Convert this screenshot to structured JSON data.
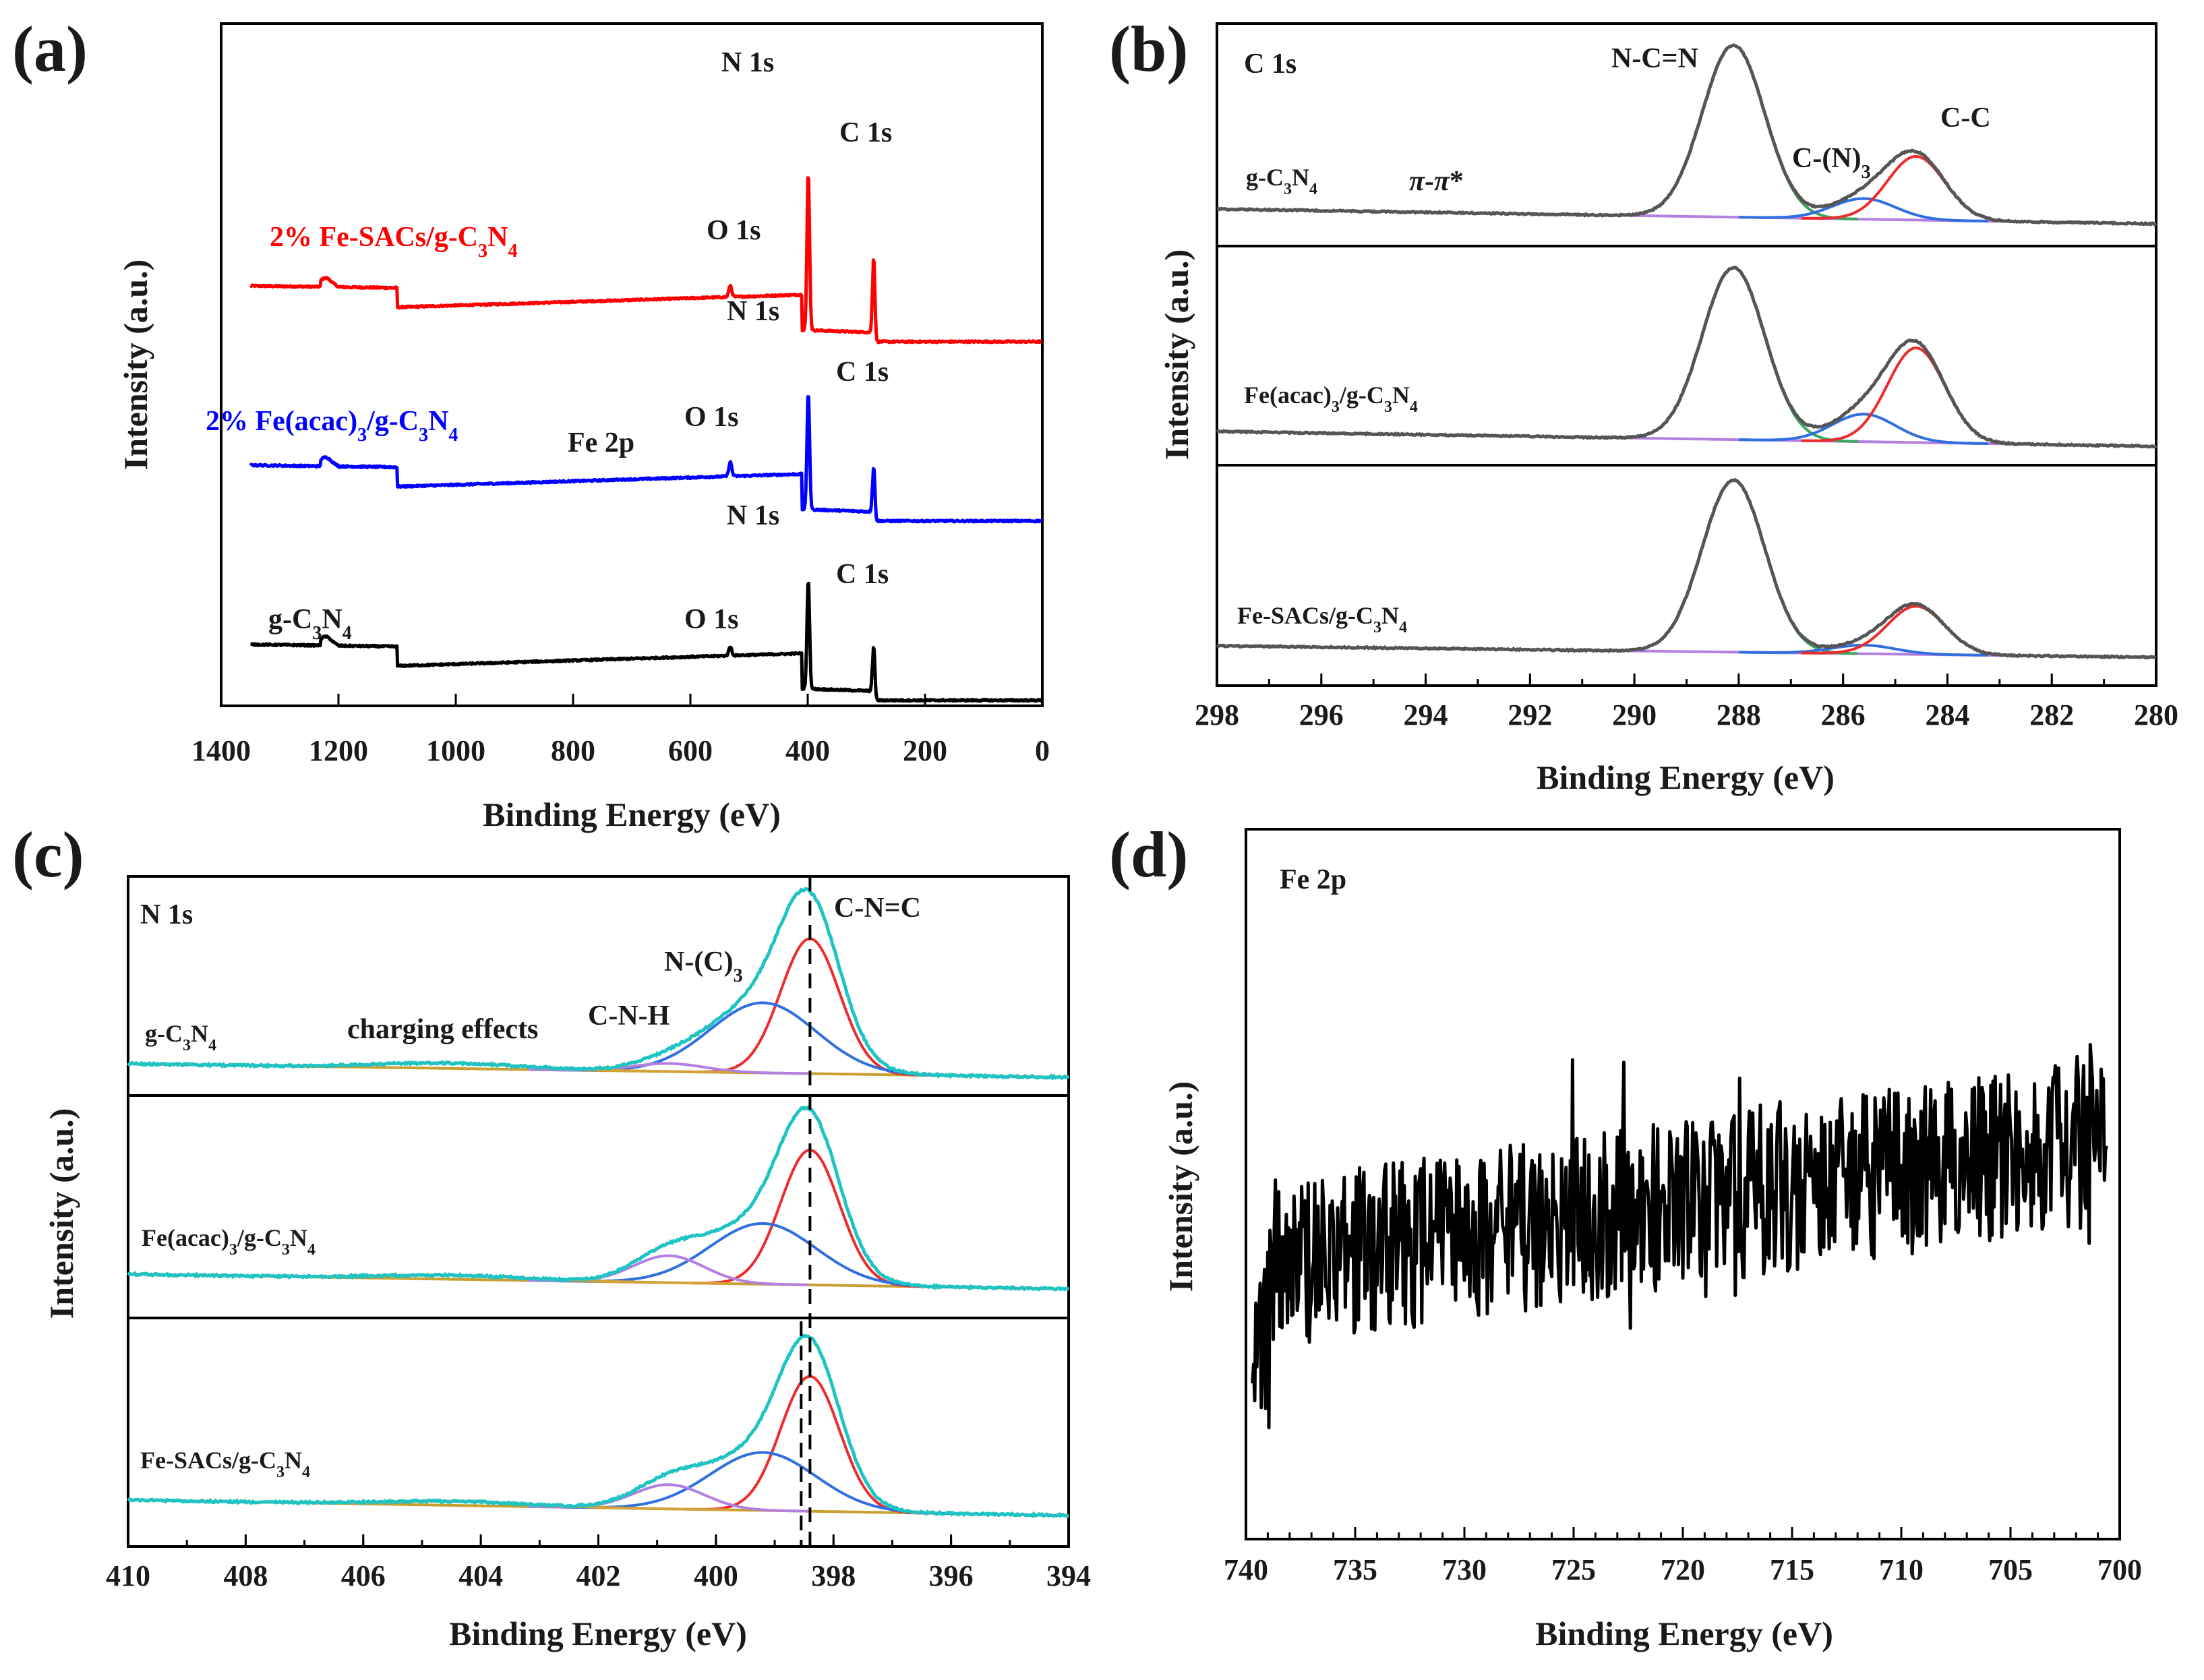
{
  "chart_data": [
    {
      "panel": "(a)",
      "type": "line",
      "xlabel": "Binding Energy (eV)",
      "ylabel": "Intensity (a.u.)",
      "xlim": [
        1400,
        0
      ],
      "xticks": [
        "1400",
        "1200",
        "1000",
        "800",
        "600",
        "400",
        "200",
        "0"
      ],
      "series": [
        {
          "name": "2% Fe-SACs/g-C3N4",
          "color": "#ff0000",
          "label_html": "2% Fe-SACs/g-C<tspan baseline-shift=\"sub\" font-size=\"28\">3</tspan>N<tspan baseline-shift=\"sub\" font-size=\"28\">4</tspan>"
        },
        {
          "name": "2% Fe(acac)3/g-C3N4",
          "color": "#0000ff",
          "label_html": "2% Fe(acac)<tspan baseline-shift=\"sub\" font-size=\"28\">3</tspan>/g-C<tspan baseline-shift=\"sub\" font-size=\"28\">3</tspan>N<tspan baseline-shift=\"sub\" font-size=\"28\">4</tspan>"
        },
        {
          "name": "g-C3N4",
          "color": "#000000",
          "label_html": "g-C<tspan baseline-shift=\"sub\" font-size=\"28\">3</tspan>N<tspan baseline-shift=\"sub\" font-size=\"28\">4</tspan>"
        }
      ],
      "peaks": [
        {
          "name": "N 1s",
          "energy": 400
        },
        {
          "name": "C 1s",
          "energy": 288
        },
        {
          "name": "O 1s",
          "energy": 532
        },
        {
          "name": "Fe 2p",
          "energy": 711
        }
      ]
    },
    {
      "panel": "(b)",
      "type": "line",
      "title": "C 1s",
      "xlabel": "Binding Energy (eV)",
      "ylabel": "Intensity (a.u.)",
      "xlim": [
        298,
        280
      ],
      "xticks": [
        "298",
        "296",
        "294",
        "292",
        "290",
        "288",
        "286",
        "284",
        "282",
        "280"
      ],
      "samples": [
        {
          "name": "g-C3N4",
          "label_html": "g-C<tspan baseline-shift=\"sub\" font-size=\"24\">3</tspan>N<tspan baseline-shift=\"sub\" font-size=\"24\">4</tspan>"
        },
        {
          "name": "Fe(acac)3/g-C3N4",
          "label_html": "Fe(acac)<tspan baseline-shift=\"sub\" font-size=\"24\">3</tspan>/g-C<tspan baseline-shift=\"sub\" font-size=\"24\">3</tspan>N<tspan baseline-shift=\"sub\" font-size=\"24\">4</tspan>"
        },
        {
          "name": "Fe-SACs/g-C3N4",
          "label_html": "Fe-SACs/g-C<tspan baseline-shift=\"sub\" font-size=\"24\">3</tspan>N<tspan baseline-shift=\"sub\" font-size=\"24\">4</tspan>"
        }
      ],
      "components": [
        {
          "name": "N-C=N",
          "center": 288.1,
          "width": 0.6,
          "color": "#3aa65c",
          "amplitudes": [
            1.0,
            1.0,
            1.0
          ]
        },
        {
          "name": "C-(N)3",
          "center": 285.6,
          "width": 0.6,
          "color": "#2f6fe0",
          "amplitudes": [
            0.12,
            0.16,
            0.05
          ]
        },
        {
          "name": "C-C",
          "center": 284.6,
          "width": 0.55,
          "color": "#ee2b2b",
          "amplitudes": [
            0.37,
            0.55,
            0.28
          ]
        }
      ],
      "annotations": [
        {
          "text": "N-C=N",
          "label_html": "N-C=N"
        },
        {
          "text": "C-(N)3",
          "label_html": "C-(N)<tspan baseline-shift=\"sub\" font-size=\"28\">3</tspan>"
        },
        {
          "text": "C-C",
          "label_html": "C-C"
        },
        {
          "text": "π-π*",
          "label_html": "<tspan font-style=\"italic\">π</tspan>-<tspan font-style=\"italic\">π</tspan>*"
        }
      ],
      "envelope_color": "#555555",
      "background_color": "#b37fe0"
    },
    {
      "panel": "(c)",
      "type": "line",
      "title": "N 1s",
      "xlabel": "Binding Energy (eV)",
      "ylabel": "Intensity (a.u.)",
      "xlim": [
        410,
        394
      ],
      "xticks": [
        "410",
        "408",
        "406",
        "404",
        "402",
        "400",
        "398",
        "396",
        "394"
      ],
      "samples": [
        {
          "name": "g-C3N4",
          "label_html": "g-C<tspan baseline-shift=\"sub\" font-size=\"24\">3</tspan>N<tspan baseline-shift=\"sub\" font-size=\"24\">4</tspan>"
        },
        {
          "name": "Fe(acac)3/g-C3N4",
          "label_html": "Fe(acac)<tspan baseline-shift=\"sub\" font-size=\"24\">3</tspan>/g-C<tspan baseline-shift=\"sub\" font-size=\"24\">3</tspan>N<tspan baseline-shift=\"sub\" font-size=\"24\">4</tspan>"
        },
        {
          "name": "Fe-SACs/g-C3N4",
          "label_html": "Fe-SACs/g-C<tspan baseline-shift=\"sub\" font-size=\"24\">3</tspan>N<tspan baseline-shift=\"sub\" font-size=\"24\">4</tspan>"
        }
      ],
      "components": [
        {
          "name": "C-N=C",
          "center": 398.4,
          "width": 0.5,
          "color": "#ee2b2b",
          "amplitudes": [
            1.0,
            1.0,
            1.0
          ]
        },
        {
          "name": "N-(C)3",
          "center": 399.2,
          "width": 0.9,
          "color": "#2f6fe0",
          "amplitudes": [
            0.52,
            0.45,
            0.43
          ]
        },
        {
          "name": "C-N-H",
          "center": 400.8,
          "width": 0.6,
          "color": "#b37fe0",
          "amplitudes": [
            0.06,
            0.2,
            0.18
          ]
        },
        {
          "name": "charging effects",
          "center": 404.5,
          "width": 1.2,
          "color": "#d4a23a",
          "amplitudes": [
            0.04,
            0.03,
            0.03
          ]
        }
      ],
      "annotations": [
        {
          "text": "C-N=C",
          "label_html": "C-N=C"
        },
        {
          "text": "N-(C)3",
          "label_html": "N-(C)<tspan baseline-shift=\"sub\" font-size=\"28\">3</tspan>"
        },
        {
          "text": "C-N-H",
          "label_html": "C-N-H"
        },
        {
          "text": "charging effects",
          "label_html": "charging effects"
        }
      ],
      "envelope_color": "#1fc3c3",
      "background_color": "#c8a030",
      "dashed_line_energy": 398.4,
      "dashed_line_energy_2": 398.55
    },
    {
      "panel": "(d)",
      "type": "line",
      "title": "Fe 2p",
      "xlabel": "Binding Energy (eV)",
      "ylabel": "Intensity (a.u.)",
      "xlim": [
        740,
        700
      ],
      "xticks": [
        "740",
        "735",
        "730",
        "725",
        "720",
        "715",
        "710",
        "705",
        "700"
      ],
      "series": [
        {
          "name": "Fe 2p noise spectrum",
          "color": "#000000",
          "x_range": [
            739.7,
            700.6
          ]
        }
      ]
    }
  ]
}
